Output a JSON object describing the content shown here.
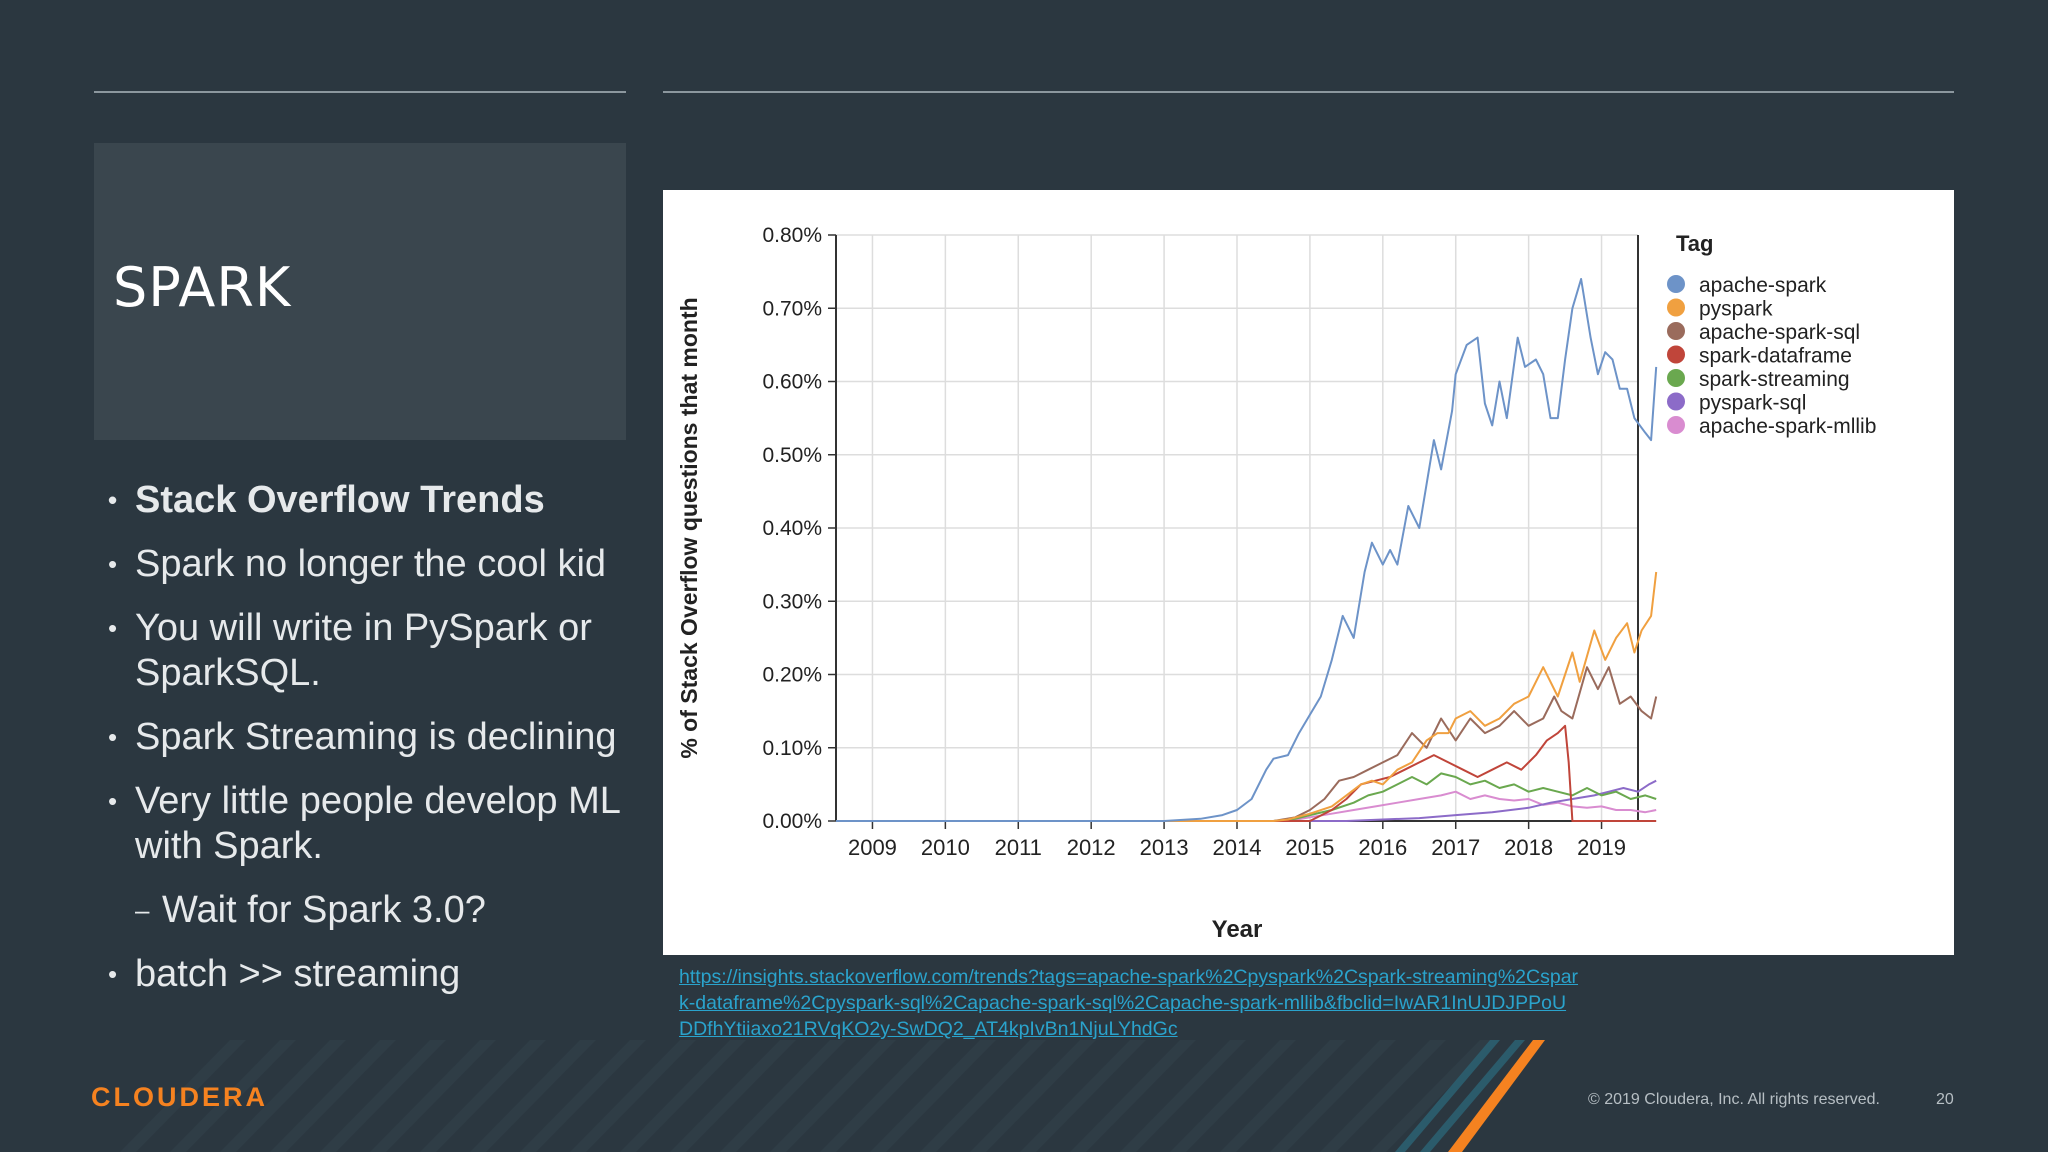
{
  "slide": {
    "title": "SPARK",
    "bullets": [
      {
        "text": "Stack Overflow Trends",
        "bold": true
      },
      {
        "text": "Spark no longer the cool kid"
      },
      {
        "text": "You will write in PySpark or SparkSQL."
      },
      {
        "text": "Spark Streaming is declining"
      },
      {
        "text": "Very little people develop ML with Spark."
      },
      {
        "text": "Wait for Spark 3.0?",
        "sub": true
      },
      {
        "text": "batch >> streaming"
      }
    ],
    "bullet_glyph": "•",
    "sub_glyph": "–",
    "link": "https://insights.stackoverflow.com/trends?tags=apache-spark%2Cpyspark%2Cspark-streaming%2Cspark-dataframe%2Cpyspark-sql%2Capache-spark-sql%2Capache-spark-mllib&fbclid=IwAR1InUJDJPPoUDDfhYtiiaxo21RVqKO2y-SwDQ2_AT4kpIvBn1NjuLYhdGc",
    "logo": "CLOUDERA",
    "copyright": "© 2019 Cloudera, Inc. All rights reserved.",
    "page_number": "20",
    "colors": {
      "background": "#2b3740",
      "accent": "#f58220",
      "link": "#2aa3cc"
    }
  },
  "chart_data": {
    "type": "line",
    "xlabel": "Year",
    "ylabel": "% of Stack Overflow questions that month",
    "xlim": [
      2008.5,
      2019.5
    ],
    "ylim": [
      0,
      0.8
    ],
    "x_ticks": [
      "2009",
      "2010",
      "2011",
      "2012",
      "2013",
      "2014",
      "2015",
      "2016",
      "2017",
      "2018",
      "2019"
    ],
    "y_ticks": [
      "0.00%",
      "0.10%",
      "0.20%",
      "0.30%",
      "0.40%",
      "0.50%",
      "0.60%",
      "0.70%",
      "0.80%"
    ],
    "legend_title": "Tag",
    "legend_position": "right",
    "grid": true,
    "series": [
      {
        "name": "apache-spark",
        "color": "#6d93c8",
        "points": [
          [
            2008.5,
            0
          ],
          [
            2013.0,
            0
          ],
          [
            2013.5,
            0.003
          ],
          [
            2013.8,
            0.008
          ],
          [
            2014.0,
            0.015
          ],
          [
            2014.2,
            0.03
          ],
          [
            2014.4,
            0.07
          ],
          [
            2014.5,
            0.085
          ],
          [
            2014.7,
            0.09
          ],
          [
            2014.85,
            0.12
          ],
          [
            2015.0,
            0.145
          ],
          [
            2015.15,
            0.17
          ],
          [
            2015.3,
            0.22
          ],
          [
            2015.45,
            0.28
          ],
          [
            2015.6,
            0.25
          ],
          [
            2015.75,
            0.34
          ],
          [
            2015.85,
            0.38
          ],
          [
            2016.0,
            0.35
          ],
          [
            2016.1,
            0.37
          ],
          [
            2016.2,
            0.35
          ],
          [
            2016.35,
            0.43
          ],
          [
            2016.5,
            0.4
          ],
          [
            2016.7,
            0.52
          ],
          [
            2016.8,
            0.48
          ],
          [
            2016.95,
            0.56
          ],
          [
            2017.0,
            0.61
          ],
          [
            2017.15,
            0.65
          ],
          [
            2017.3,
            0.66
          ],
          [
            2017.4,
            0.57
          ],
          [
            2017.5,
            0.54
          ],
          [
            2017.6,
            0.6
          ],
          [
            2017.7,
            0.55
          ],
          [
            2017.85,
            0.66
          ],
          [
            2017.95,
            0.62
          ],
          [
            2018.1,
            0.63
          ],
          [
            2018.2,
            0.61
          ],
          [
            2018.3,
            0.55
          ],
          [
            2018.4,
            0.55
          ],
          [
            2018.5,
            0.63
          ],
          [
            2018.6,
            0.7
          ],
          [
            2018.72,
            0.74
          ],
          [
            2018.85,
            0.66
          ],
          [
            2018.95,
            0.61
          ],
          [
            2019.05,
            0.64
          ],
          [
            2019.15,
            0.63
          ],
          [
            2019.25,
            0.59
          ],
          [
            2019.35,
            0.59
          ],
          [
            2019.45,
            0.55
          ],
          [
            2019.6,
            0.53
          ],
          [
            2019.68,
            0.52
          ],
          [
            2019.75,
            0.62
          ]
        ]
      },
      {
        "name": "pyspark",
        "color": "#f0a040",
        "points": [
          [
            2008.5,
            0
          ],
          [
            2014.5,
            0
          ],
          [
            2014.7,
            0.002
          ],
          [
            2015.0,
            0.01
          ],
          [
            2015.3,
            0.02
          ],
          [
            2015.5,
            0.035
          ],
          [
            2015.7,
            0.05
          ],
          [
            2015.85,
            0.055
          ],
          [
            2016.0,
            0.05
          ],
          [
            2016.2,
            0.07
          ],
          [
            2016.4,
            0.08
          ],
          [
            2016.6,
            0.11
          ],
          [
            2016.75,
            0.12
          ],
          [
            2016.9,
            0.12
          ],
          [
            2017.0,
            0.14
          ],
          [
            2017.2,
            0.15
          ],
          [
            2017.4,
            0.13
          ],
          [
            2017.6,
            0.14
          ],
          [
            2017.8,
            0.16
          ],
          [
            2018.0,
            0.17
          ],
          [
            2018.2,
            0.21
          ],
          [
            2018.4,
            0.17
          ],
          [
            2018.6,
            0.23
          ],
          [
            2018.7,
            0.19
          ],
          [
            2018.9,
            0.26
          ],
          [
            2019.05,
            0.22
          ],
          [
            2019.2,
            0.25
          ],
          [
            2019.35,
            0.27
          ],
          [
            2019.45,
            0.23
          ],
          [
            2019.55,
            0.26
          ],
          [
            2019.68,
            0.28
          ],
          [
            2019.75,
            0.34
          ]
        ]
      },
      {
        "name": "apache-spark-sql",
        "color": "#9a6b5c",
        "points": [
          [
            2008.5,
            0
          ],
          [
            2014.5,
            0
          ],
          [
            2014.8,
            0.005
          ],
          [
            2015.0,
            0.015
          ],
          [
            2015.2,
            0.03
          ],
          [
            2015.4,
            0.055
          ],
          [
            2015.6,
            0.06
          ],
          [
            2015.8,
            0.07
          ],
          [
            2016.0,
            0.08
          ],
          [
            2016.2,
            0.09
          ],
          [
            2016.4,
            0.12
          ],
          [
            2016.6,
            0.1
          ],
          [
            2016.8,
            0.14
          ],
          [
            2017.0,
            0.11
          ],
          [
            2017.2,
            0.14
          ],
          [
            2017.4,
            0.12
          ],
          [
            2017.6,
            0.13
          ],
          [
            2017.8,
            0.15
          ],
          [
            2018.0,
            0.13
          ],
          [
            2018.2,
            0.14
          ],
          [
            2018.35,
            0.17
          ],
          [
            2018.45,
            0.15
          ],
          [
            2018.6,
            0.14
          ],
          [
            2018.8,
            0.21
          ],
          [
            2018.95,
            0.18
          ],
          [
            2019.1,
            0.21
          ],
          [
            2019.25,
            0.16
          ],
          [
            2019.4,
            0.17
          ],
          [
            2019.55,
            0.15
          ],
          [
            2019.68,
            0.14
          ],
          [
            2019.75,
            0.17
          ]
        ]
      },
      {
        "name": "spark-dataframe",
        "color": "#c0453a",
        "points": [
          [
            2008.5,
            0
          ],
          [
            2015.0,
            0
          ],
          [
            2015.3,
            0.015
          ],
          [
            2015.5,
            0.03
          ],
          [
            2015.7,
            0.05
          ],
          [
            2015.9,
            0.055
          ],
          [
            2016.1,
            0.06
          ],
          [
            2016.3,
            0.07
          ],
          [
            2016.5,
            0.08
          ],
          [
            2016.7,
            0.09
          ],
          [
            2016.9,
            0.08
          ],
          [
            2017.1,
            0.07
          ],
          [
            2017.3,
            0.06
          ],
          [
            2017.5,
            0.07
          ],
          [
            2017.7,
            0.08
          ],
          [
            2017.9,
            0.07
          ],
          [
            2018.1,
            0.09
          ],
          [
            2018.25,
            0.11
          ],
          [
            2018.4,
            0.12
          ],
          [
            2018.5,
            0.13
          ],
          [
            2018.55,
            0.08
          ],
          [
            2018.6,
            0
          ],
          [
            2019.75,
            0
          ]
        ]
      },
      {
        "name": "spark-streaming",
        "color": "#6aa84f",
        "points": [
          [
            2008.5,
            0
          ],
          [
            2014.5,
            0
          ],
          [
            2014.8,
            0.003
          ],
          [
            2015.0,
            0.008
          ],
          [
            2015.3,
            0.015
          ],
          [
            2015.6,
            0.025
          ],
          [
            2015.8,
            0.035
          ],
          [
            2016.0,
            0.04
          ],
          [
            2016.2,
            0.05
          ],
          [
            2016.4,
            0.06
          ],
          [
            2016.6,
            0.05
          ],
          [
            2016.8,
            0.065
          ],
          [
            2017.0,
            0.06
          ],
          [
            2017.2,
            0.05
          ],
          [
            2017.4,
            0.055
          ],
          [
            2017.6,
            0.045
          ],
          [
            2017.8,
            0.05
          ],
          [
            2018.0,
            0.04
          ],
          [
            2018.2,
            0.045
          ],
          [
            2018.4,
            0.04
          ],
          [
            2018.6,
            0.035
          ],
          [
            2018.8,
            0.045
          ],
          [
            2019.0,
            0.035
          ],
          [
            2019.2,
            0.04
          ],
          [
            2019.4,
            0.03
          ],
          [
            2019.6,
            0.035
          ],
          [
            2019.75,
            0.03
          ]
        ]
      },
      {
        "name": "pyspark-sql",
        "color": "#8c6bc8",
        "points": [
          [
            2008.5,
            0
          ],
          [
            2015.5,
            0
          ],
          [
            2016.0,
            0.002
          ],
          [
            2016.5,
            0.004
          ],
          [
            2017.0,
            0.008
          ],
          [
            2017.5,
            0.012
          ],
          [
            2018.0,
            0.018
          ],
          [
            2018.3,
            0.025
          ],
          [
            2018.6,
            0.03
          ],
          [
            2018.9,
            0.035
          ],
          [
            2019.1,
            0.04
          ],
          [
            2019.3,
            0.045
          ],
          [
            2019.5,
            0.04
          ],
          [
            2019.65,
            0.05
          ],
          [
            2019.75,
            0.055
          ]
        ]
      },
      {
        "name": "apache-spark-mllib",
        "color": "#d98cd0",
        "points": [
          [
            2008.5,
            0
          ],
          [
            2014.7,
            0
          ],
          [
            2015.0,
            0.005
          ],
          [
            2015.3,
            0.01
          ],
          [
            2015.6,
            0.015
          ],
          [
            2015.9,
            0.02
          ],
          [
            2016.2,
            0.025
          ],
          [
            2016.5,
            0.03
          ],
          [
            2016.8,
            0.035
          ],
          [
            2017.0,
            0.04
          ],
          [
            2017.2,
            0.03
          ],
          [
            2017.4,
            0.035
          ],
          [
            2017.6,
            0.03
          ],
          [
            2017.8,
            0.028
          ],
          [
            2018.0,
            0.03
          ],
          [
            2018.2,
            0.022
          ],
          [
            2018.4,
            0.025
          ],
          [
            2018.6,
            0.02
          ],
          [
            2018.8,
            0.018
          ],
          [
            2019.0,
            0.02
          ],
          [
            2019.2,
            0.015
          ],
          [
            2019.4,
            0.015
          ],
          [
            2019.6,
            0.012
          ],
          [
            2019.75,
            0.015
          ]
        ]
      }
    ]
  }
}
